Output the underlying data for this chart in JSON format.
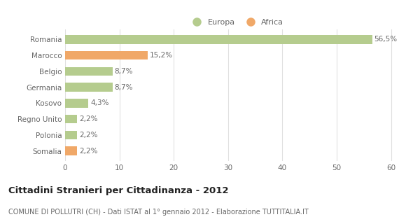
{
  "categories": [
    "Romania",
    "Marocco",
    "Belgio",
    "Germania",
    "Kosovo",
    "Regno Unito",
    "Polonia",
    "Somalia"
  ],
  "values": [
    56.5,
    15.2,
    8.7,
    8.7,
    4.3,
    2.2,
    2.2,
    2.2
  ],
  "labels": [
    "56,5%",
    "15,2%",
    "8,7%",
    "8,7%",
    "4,3%",
    "2,2%",
    "2,2%",
    "2,2%"
  ],
  "colors": [
    "#b5cc8e",
    "#f0a868",
    "#b5cc8e",
    "#b5cc8e",
    "#b5cc8e",
    "#b5cc8e",
    "#b5cc8e",
    "#f0a868"
  ],
  "legend": [
    {
      "label": "Europa",
      "color": "#b5cc8e"
    },
    {
      "label": "Africa",
      "color": "#f0a868"
    }
  ],
  "xlim": [
    0,
    63
  ],
  "xticks": [
    0,
    10,
    20,
    30,
    40,
    50,
    60
  ],
  "title": "Cittadini Stranieri per Cittadinanza - 2012",
  "subtitle": "COMUNE DI POLLUTRI (CH) - Dati ISTAT al 1° gennaio 2012 - Elaborazione TUTTITALIA.IT",
  "background_color": "#ffffff",
  "grid_color": "#e0e0e0",
  "bar_height": 0.55,
  "label_fontsize": 7.5,
  "tick_label_fontsize": 7.5,
  "title_fontsize": 9.5,
  "subtitle_fontsize": 7,
  "text_color": "#666666"
}
